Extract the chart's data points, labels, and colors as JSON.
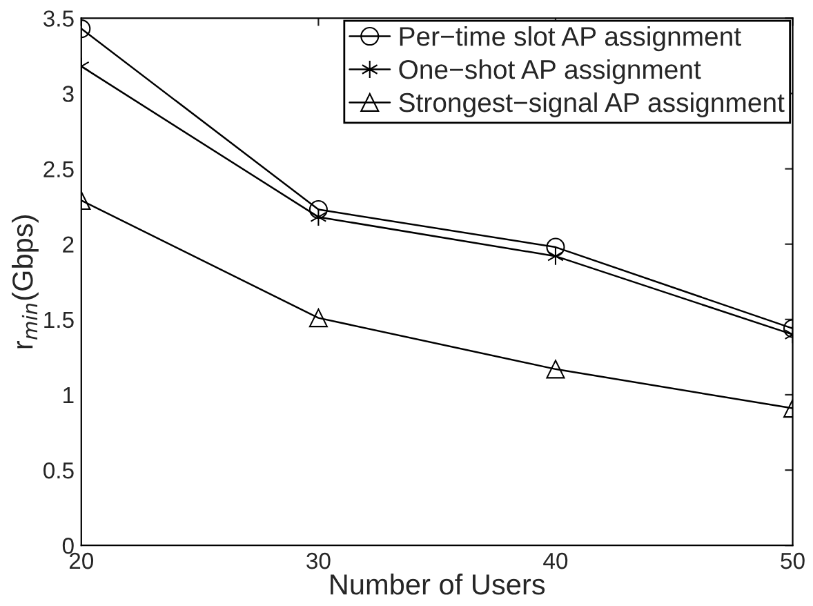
{
  "chart_data": {
    "type": "line",
    "xlabel": "Number of Users",
    "ylabel": "r$_{min}$(Gbps)",
    "x": [
      20,
      30,
      40,
      50
    ],
    "series": [
      {
        "name": "Per−time slot AP assignment",
        "color": "#000000",
        "marker": "circle",
        "values": [
          3.43,
          2.23,
          1.98,
          1.44
        ]
      },
      {
        "name": "One−shot AP assignment",
        "color": "#000000",
        "marker": "cross",
        "values": [
          3.18,
          2.18,
          1.92,
          1.4
        ]
      },
      {
        "name": "Strongest−signal AP assignment",
        "color": "#000000",
        "marker": "triangle",
        "values": [
          2.29,
          1.51,
          1.17,
          0.91
        ]
      }
    ],
    "xlim": [
      20,
      50
    ],
    "xticks": [
      20,
      30,
      40,
      50
    ],
    "ylim": [
      0,
      3.5
    ],
    "yticks": [
      0,
      0.5,
      1,
      1.5,
      2,
      2.5,
      3,
      3.5
    ],
    "grid": false,
    "legend": "top right",
    "line_style": "solid"
  }
}
